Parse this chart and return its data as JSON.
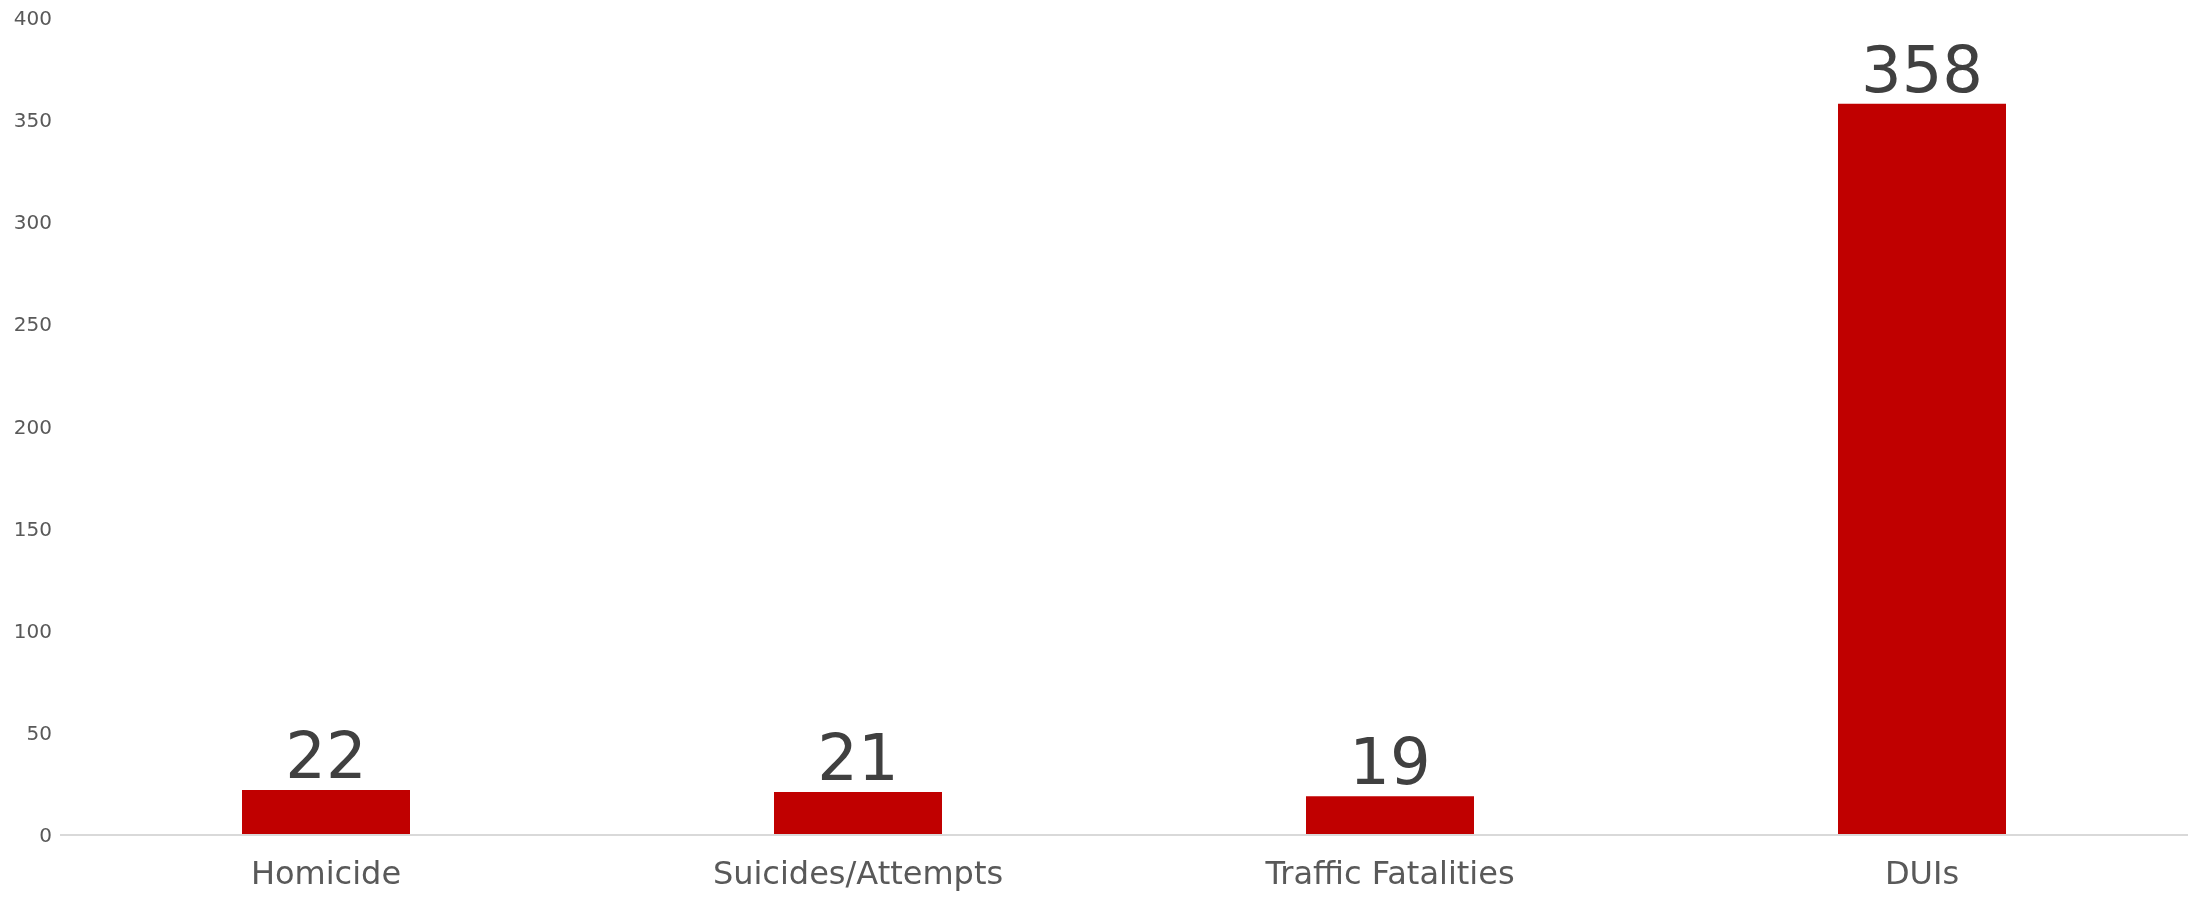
{
  "chart_data": {
    "type": "bar",
    "categories": [
      "Homicide",
      "Suicides/Attempts",
      "Traffic Fatalities",
      "DUIs"
    ],
    "values": [
      22,
      21,
      19,
      358
    ],
    "color": "#c00000",
    "ylim": [
      0,
      400
    ],
    "yticks": [
      0,
      50,
      100,
      150,
      200,
      250,
      300,
      350,
      400
    ],
    "grid": false,
    "data_labels": true
  }
}
